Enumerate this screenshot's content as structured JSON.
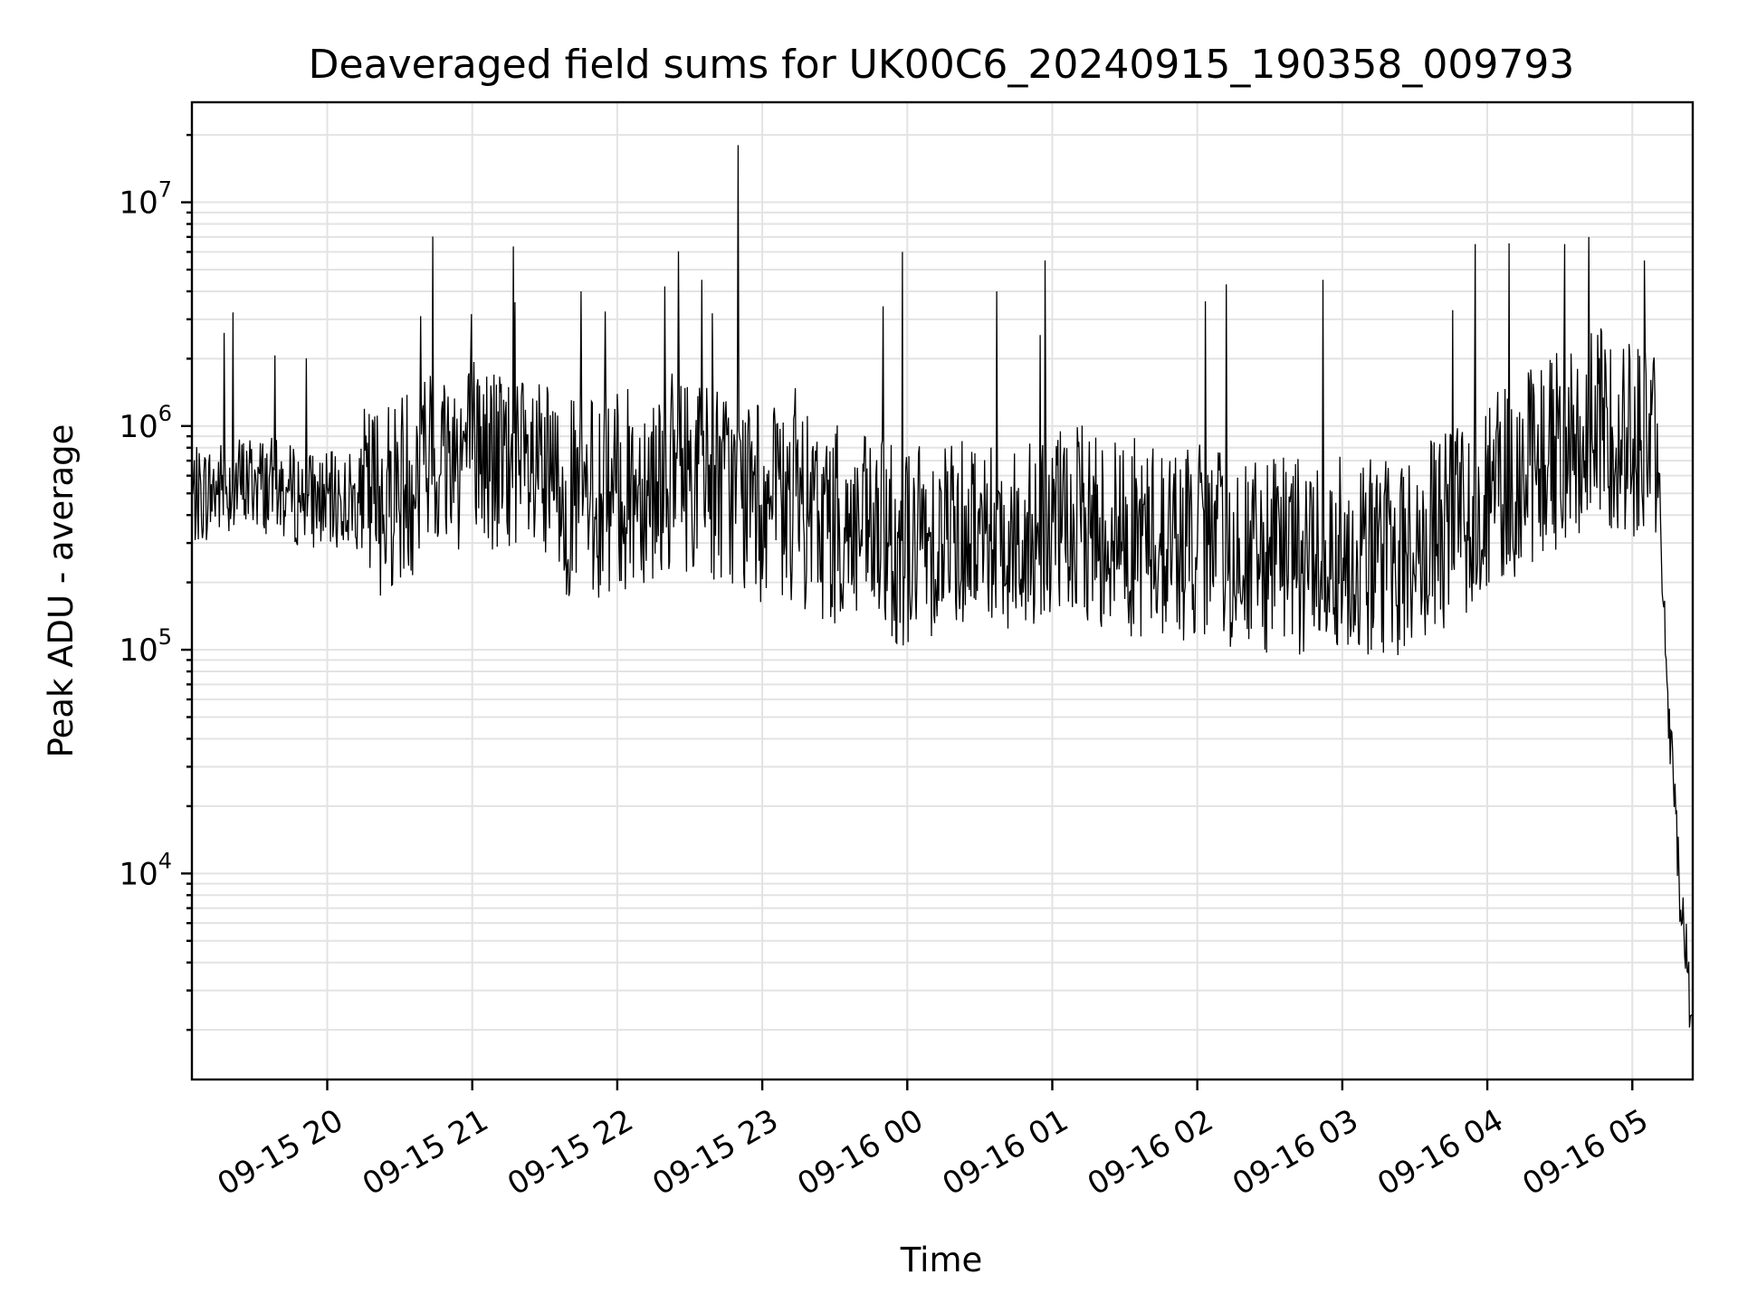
{
  "chart_data": {
    "type": "line",
    "title": "Deaveraged field sums for UK00C6_20240915_190358_009793",
    "xlabel": "Time",
    "ylabel": "Peak ADU - average",
    "x_type": "time",
    "x_range": [
      "09-15 19:04",
      "09-16 05:25"
    ],
    "y_scale": "log",
    "ylim": [
      1200,
      28000000
    ],
    "grid": true,
    "x_ticks": [
      "09-15 20",
      "09-15 21",
      "09-15 22",
      "09-15 23",
      "09-16 00",
      "09-16 01",
      "09-16 02",
      "09-16 03",
      "09-16 04",
      "09-16 05"
    ],
    "y_ticks": [
      {
        "value": 10000,
        "base": "10",
        "exp": "4"
      },
      {
        "value": 100000,
        "base": "10",
        "exp": "5"
      },
      {
        "value": 1000000,
        "base": "10",
        "exp": "6"
      },
      {
        "value": 10000000,
        "base": "10",
        "exp": "7"
      }
    ],
    "series": [
      {
        "color": "#000000",
        "x": [
          "09-15 19:04",
          "09-15 19:15",
          "09-15 19:30",
          "09-15 19:45",
          "09-15 20:00",
          "09-15 20:15",
          "09-15 20:30",
          "09-15 20:45",
          "09-15 21:00",
          "09-15 21:15",
          "09-15 21:30",
          "09-15 21:45",
          "09-15 22:00",
          "09-15 22:15",
          "09-15 22:30",
          "09-15 22:45",
          "09-15 23:00",
          "09-15 23:15",
          "09-15 23:30",
          "09-15 23:45",
          "09-16 00:00",
          "09-16 00:15",
          "09-16 00:30",
          "09-16 00:45",
          "09-16 01:00",
          "09-16 01:15",
          "09-16 01:30",
          "09-16 01:45",
          "09-16 02:00",
          "09-16 02:15",
          "09-16 02:30",
          "09-16 02:45",
          "09-16 03:00",
          "09-16 03:15",
          "09-16 03:30",
          "09-16 03:45",
          "09-16 04:00",
          "09-16 04:15",
          "09-16 04:30",
          "09-16 04:45",
          "09-16 05:00",
          "09-16 05:10",
          "09-16 05:15",
          "09-16 05:20",
          "09-16 05:25"
        ],
        "y": [
          500000,
          550000,
          600000,
          520000,
          480000,
          500000,
          600000,
          800000,
          900000,
          700000,
          600000,
          500000,
          550000,
          650000,
          700000,
          600000,
          500000,
          450000,
          400000,
          350000,
          320000,
          380000,
          400000,
          350000,
          380000,
          400000,
          360000,
          340000,
          330000,
          300000,
          280000,
          300000,
          310000,
          290000,
          300000,
          400000,
          550000,
          700000,
          900000,
          1100000,
          1000000,
          900000,
          50000,
          8000,
          2000
        ],
        "spikes": [
          {
            "x": "09-15 22:50",
            "y": 18000000
          },
          {
            "x": "09-15 23:58",
            "y": 6000000
          },
          {
            "x": "09-16 04:42",
            "y": 7000000
          },
          {
            "x": "09-16 03:55",
            "y": 6500000
          },
          {
            "x": "09-15 21:45",
            "y": 4000000
          },
          {
            "x": "09-15 22:35",
            "y": 4500000
          },
          {
            "x": "09-16 00:57",
            "y": 5500000
          },
          {
            "x": "09-16 02:52",
            "y": 4500000
          },
          {
            "x": "09-16 02:12",
            "y": 4300000
          },
          {
            "x": "09-16 00:37",
            "y": 4000000
          },
          {
            "x": "09-16 05:05",
            "y": 5500000
          },
          {
            "x": "09-16 04:32",
            "y": 6500000
          }
        ]
      }
    ]
  }
}
